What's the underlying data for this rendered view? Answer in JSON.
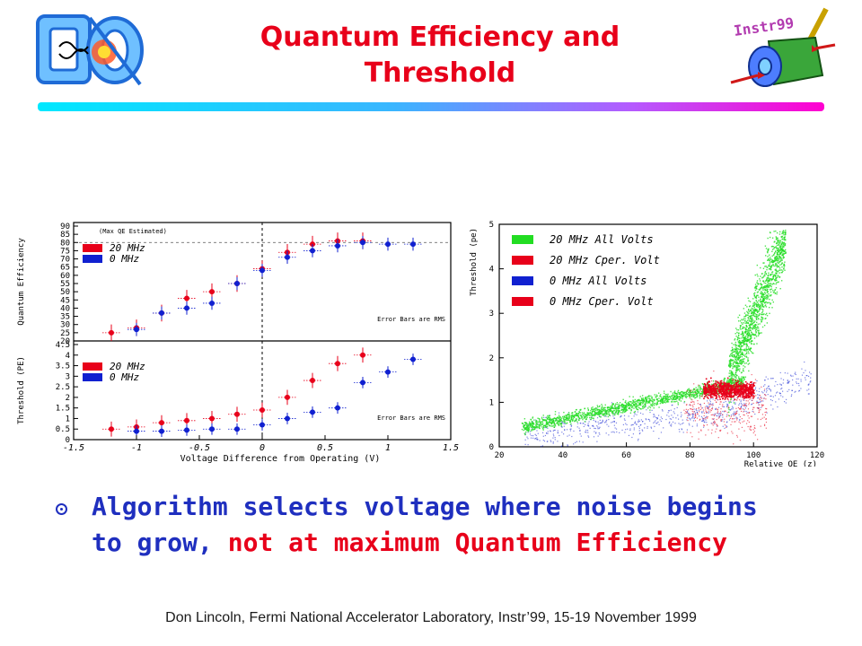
{
  "slide": {
    "title_line1": "Quantum Efficiency and",
    "title_line2": "Threshold",
    "bullet_blue": "Algorithm selects voltage where noise begins to grow, ",
    "bullet_red": "not at maximum Quantum Efficiency",
    "footer": "Don Lincoln, Fermi National Accelerator Laboratory, Instr’99, 15-19 November 1999",
    "logo_text": "D",
    "instr_text": "Instr99"
  },
  "colors": {
    "title": "#e8001a",
    "bullet": "#1f2fbf",
    "series_red": "#e8001a",
    "series_blue": "#1020d0",
    "green": "#22dd22"
  },
  "chart_data": [
    {
      "type": "scatter",
      "ylabel": "Quantum Efficiency",
      "note": "(Max QE Estimated)",
      "annotation": "Error Bars are RMS",
      "ylim": [
        20,
        90
      ],
      "yticks": [
        "20",
        "25",
        "30",
        "35",
        "40",
        "45",
        "50",
        "55",
        "60",
        "65",
        "70",
        "75",
        "80",
        "85",
        "90"
      ],
      "xlim": [
        -1.5,
        1.5
      ],
      "series": [
        {
          "name": "20 MHz",
          "x": [
            -1.2,
            -1.0,
            -0.8,
            -0.6,
            -0.4,
            -0.2,
            0.0,
            0.2,
            0.4,
            0.6,
            0.8
          ],
          "y": [
            25,
            28,
            37,
            46,
            50,
            55,
            64,
            74,
            79,
            81,
            81
          ]
        },
        {
          "name": "0 MHz",
          "x": [
            -1.0,
            -0.8,
            -0.6,
            -0.4,
            -0.2,
            0.0,
            0.2,
            0.4,
            0.6,
            0.8,
            1.0,
            1.2
          ],
          "y": [
            27,
            37,
            40,
            43,
            55,
            63,
            71,
            75,
            78,
            80,
            79,
            79
          ]
        }
      ]
    },
    {
      "type": "scatter",
      "ylabel": "Threshold (PE)",
      "xlabel": "Voltage Difference from Operating (V)",
      "annotation": "Error Bars are RMS",
      "ylim": [
        0,
        4.5
      ],
      "yticks": [
        "0",
        "0.5",
        "1",
        "1.5",
        "2",
        "2.5",
        "3",
        "3.5",
        "4",
        "4.5"
      ],
      "xticks": [
        "-1.5",
        "-1",
        "-0.5",
        "0",
        "0.5",
        "1",
        "1.5"
      ],
      "xlim": [
        -1.5,
        1.5
      ],
      "series": [
        {
          "name": "20 MHz",
          "x": [
            -1.2,
            -1.0,
            -0.8,
            -0.6,
            -0.4,
            -0.2,
            0.0,
            0.2,
            0.4,
            0.6,
            0.8
          ],
          "y": [
            0.5,
            0.6,
            0.8,
            0.9,
            1.0,
            1.2,
            1.4,
            2.0,
            2.8,
            3.6,
            4.0
          ]
        },
        {
          "name": "0 MHz",
          "x": [
            -1.0,
            -0.8,
            -0.6,
            -0.4,
            -0.2,
            0.0,
            0.2,
            0.4,
            0.6,
            0.8,
            1.0,
            1.2
          ],
          "y": [
            0.4,
            0.4,
            0.45,
            0.5,
            0.5,
            0.7,
            1.0,
            1.3,
            1.5,
            2.7,
            3.2,
            3.8
          ]
        }
      ]
    },
    {
      "type": "scatter",
      "ylabel": "Threshold (pe)",
      "xlabel": "Relative QE (z)",
      "xlim": [
        20,
        120
      ],
      "ylim": [
        0,
        5
      ],
      "xticks": [
        "20",
        "40",
        "60",
        "80",
        "100",
        "120"
      ],
      "yticks": [
        "0",
        "1",
        "2",
        "3",
        "4",
        "5"
      ],
      "series": [
        {
          "name": "20 MHz All Volts"
        },
        {
          "name": "20 MHz Cper. Volt"
        },
        {
          "name": "0 MHz All Volts"
        },
        {
          "name": "0 MHz Cper. Volt"
        }
      ]
    }
  ]
}
